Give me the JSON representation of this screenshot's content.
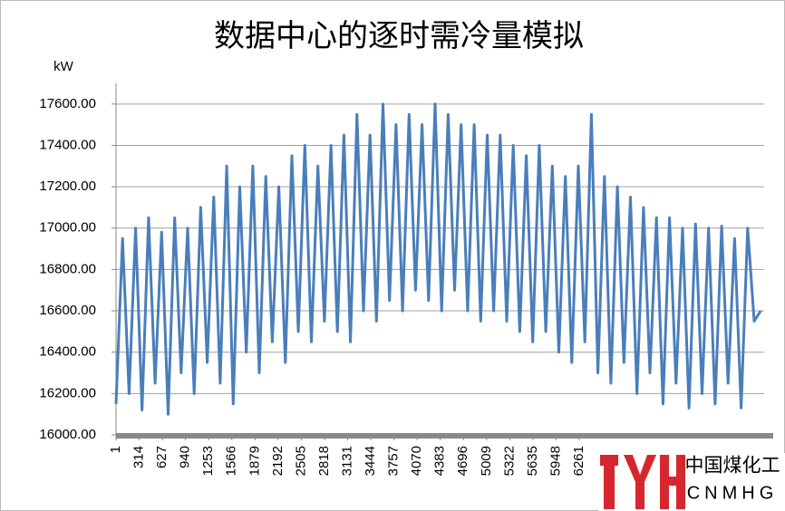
{
  "chart_data": {
    "type": "line",
    "title": "数据中心的逐时需冷量模拟",
    "y_unit": "kW",
    "color": "#4a7ebb",
    "xlim": [
      1,
      8760
    ],
    "xticks": [
      1,
      314,
      627,
      940,
      1253,
      1566,
      1879,
      2192,
      2505,
      2818,
      3131,
      3444,
      3757,
      4070,
      4383,
      4696,
      5009,
      5322,
      5635,
      5948,
      6261
    ],
    "ylim": [
      16000,
      17700
    ],
    "yticks": [
      {
        "value": 16000,
        "label": "16000.00"
      },
      {
        "value": 16200,
        "label": "16200.00"
      },
      {
        "value": 16400,
        "label": "16400.00"
      },
      {
        "value": 16600,
        "label": "16600.00"
      },
      {
        "value": 16800,
        "label": "16800.00"
      },
      {
        "value": 17000,
        "label": "17000.00"
      },
      {
        "value": 17200,
        "label": "17200.00"
      },
      {
        "value": 17400,
        "label": "17400.00"
      },
      {
        "value": 17600,
        "label": "17600.00"
      }
    ],
    "grid": true,
    "x": [
      1,
      89,
      177,
      265,
      353,
      441,
      529,
      617,
      705,
      793,
      881,
      969,
      1057,
      1145,
      1233,
      1321,
      1409,
      1497,
      1585,
      1673,
      1761,
      1849,
      1937,
      2025,
      2113,
      2201,
      2289,
      2377,
      2465,
      2553,
      2641,
      2729,
      2817,
      2905,
      2993,
      3081,
      3169,
      3257,
      3345,
      3433,
      3521,
      3609,
      3697,
      3785,
      3873,
      3961,
      4049,
      4137,
      4225,
      4313,
      4401,
      4489,
      4577,
      4665,
      4753,
      4841,
      4929,
      5017,
      5105,
      5193,
      5281,
      5369,
      5457,
      5545,
      5633,
      5721,
      5809,
      5897,
      5985,
      6073,
      6161,
      6249,
      6337,
      6425,
      6513,
      6601,
      6689,
      6777,
      6865,
      6953,
      7041,
      7129,
      7217,
      7305,
      7393,
      7481,
      7569,
      7657,
      7745,
      7833,
      7921,
      8009,
      8097,
      8185,
      8273,
      8361,
      8449,
      8537,
      8625,
      8713
    ],
    "values": [
      16150,
      16950,
      16200,
      17000,
      16120,
      17050,
      16250,
      16980,
      16100,
      17050,
      16300,
      17000,
      16200,
      17100,
      16350,
      17150,
      16250,
      17300,
      16150,
      17200,
      16400,
      17300,
      16300,
      17250,
      16450,
      17200,
      16350,
      17350,
      16500,
      17400,
      16450,
      17300,
      16550,
      17400,
      16500,
      17450,
      16450,
      17550,
      16600,
      17450,
      16550,
      17600,
      16650,
      17500,
      16600,
      17550,
      16700,
      17500,
      16650,
      17600,
      16600,
      17550,
      16700,
      17500,
      16600,
      17500,
      16550,
      17450,
      16600,
      17450,
      16550,
      17400,
      16500,
      17350,
      16450,
      17400,
      16500,
      17300,
      16400,
      17250,
      16350,
      17300,
      16450,
      17550,
      16300,
      17250,
      16250,
      17200,
      16350,
      17150,
      16200,
      17100,
      16300,
      17050,
      16150,
      17050,
      16250,
      17000,
      16130,
      17020,
      16200,
      17000,
      16150,
      17010,
      16250,
      16950,
      16130,
      17000,
      16550,
      16600
    ]
  },
  "watermark": {
    "name": "中国煤化工",
    "latin": "CNMHG"
  }
}
